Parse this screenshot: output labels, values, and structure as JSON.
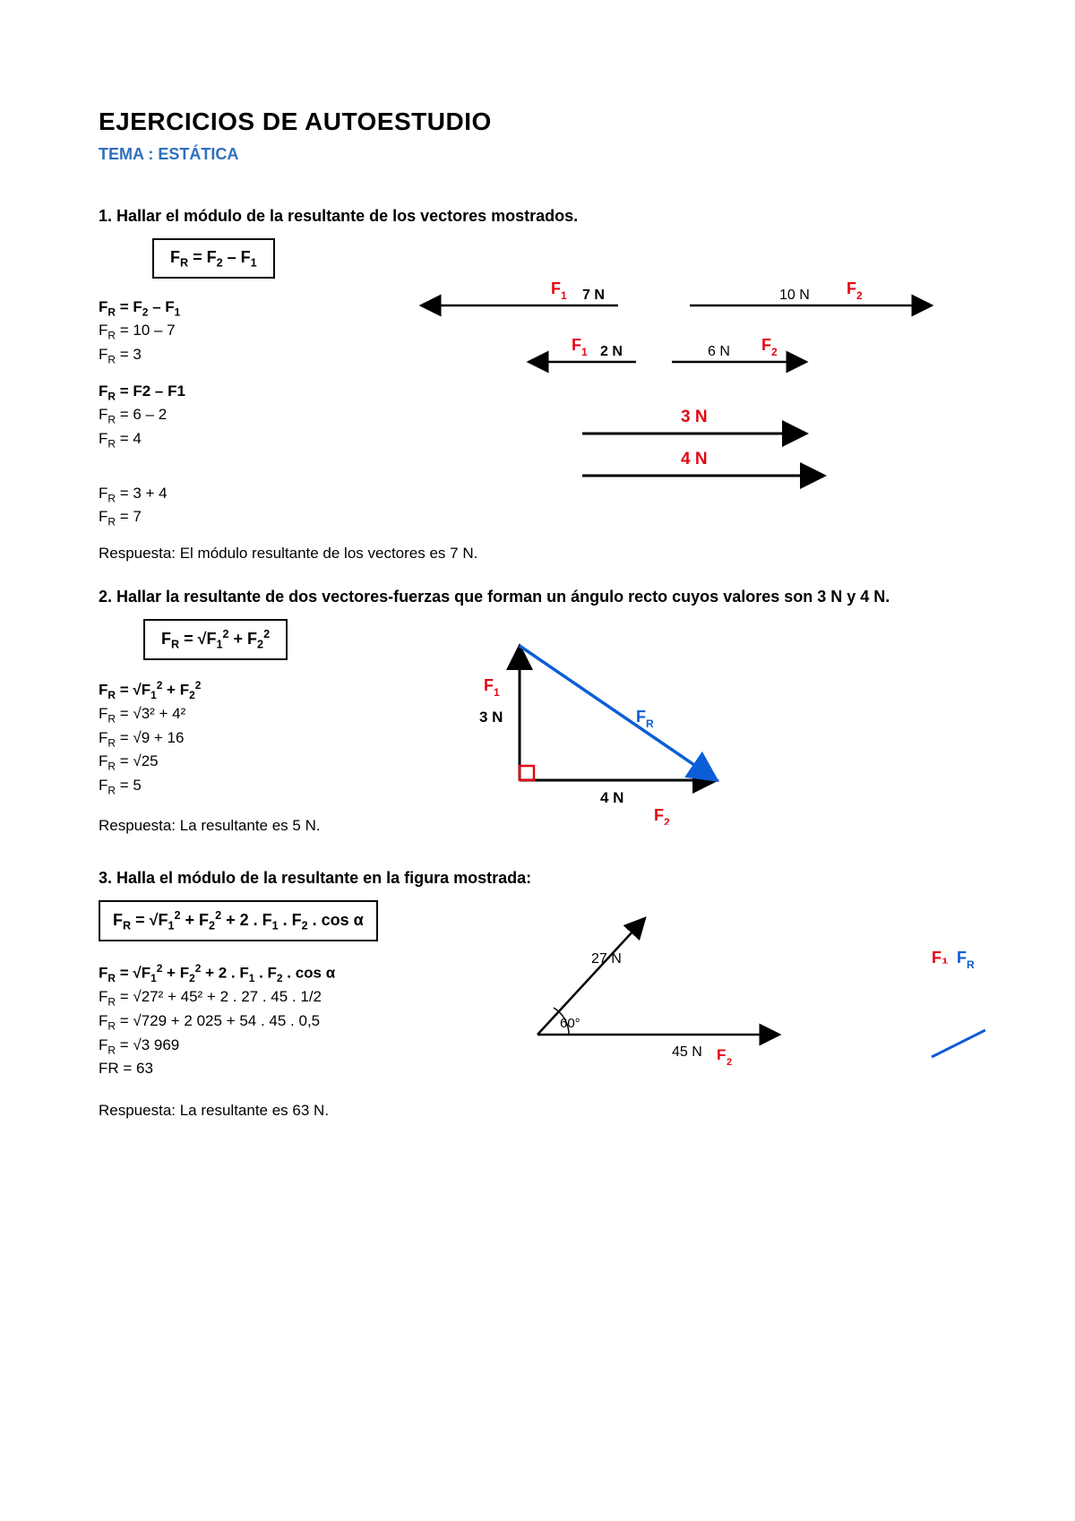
{
  "title": "EJERCICIOS DE AUTOESTUDIO",
  "subtitle": "TEMA : ESTÁTICA",
  "colors": {
    "heading_blue": "#2f6fbf",
    "red": "#e30613",
    "blue_line": "#0b5ed7",
    "black": "#000000"
  },
  "problem1": {
    "title": "1. Hallar el módulo de la resultante de los vectores mostrados.",
    "formula_box": "F<sub>R</sub> = F<sub>2</sub> – F<sub>1</sub>",
    "calc1_head": "F<sub>R</sub> = F<sub>2</sub> – F<sub>1</sub>",
    "calc1_line2": "F<sub>R</sub> = 10 – 7",
    "calc1_line3": "F<sub>R</sub> = 3",
    "calc2_head": "F<sub>R</sub> = F2 – F1",
    "calc2_line2": "F<sub>R</sub> = 6 – 2",
    "calc2_line3": "F<sub>R</sub> = 4",
    "calc3_line1": "F<sub>R</sub> = 3 + 4",
    "calc3_line2": "F<sub>R</sub> = 7",
    "respuesta": "Respuesta: El módulo resultante de los vectores es 7 N.",
    "diagram": {
      "row1": {
        "label_left": "F₁",
        "val_left": "7 N",
        "label_right": "F₂",
        "val_right": "10 N"
      },
      "row2": {
        "label_left": "F₁",
        "val_left": "2 N",
        "label_right": "F₂",
        "val_right": "6 N"
      },
      "row3": {
        "top": "3 N",
        "bottom": "4 N",
        "color": "#e30613"
      }
    }
  },
  "problem2": {
    "title": "2. Hallar la resultante de dos vectores-fuerzas que forman un ángulo recto cuyos valores son 3 N y 4 N.",
    "formula_box": "F<sub>R</sub> = √F<sub>1</sub><sup>2</sup> + F<sub>2</sub><sup>2</sup>",
    "calc_head": "F<sub>R</sub> = √F<sub>1</sub><sup>2</sup> + F<sub>2</sub><sup>2</sup>",
    "calc_l2": "F<sub>R</sub> = √3² + 4²",
    "calc_l3": "F<sub>R</sub> = √9 + 16",
    "calc_l4": "F<sub>R</sub> = √25",
    "calc_l5": "F<sub>R</sub> = 5",
    "respuesta": "Respuesta: La resultante es 5 N.",
    "diagram": {
      "F1_label": "F₁",
      "F1_val": "3 N",
      "F2_label": "F₂",
      "F2_val": "4 N",
      "FR_label": "F",
      "FR_sub": "R"
    }
  },
  "problem3": {
    "title": "3. Halla el módulo de la resultante en la figura mostrada:",
    "formula_box": "F<sub>R</sub> = √F<sub>1</sub><sup>2</sup> + F<sub>2</sub><sup>2</sup> + 2 . F<sub>1</sub> . F<sub>2</sub> . cos α",
    "calc_head": "F<sub>R</sub> = √F<sub>1</sub><sup>2</sup> + F<sub>2</sub><sup>2</sup> + 2 . F<sub>1</sub> . F<sub>2</sub> . cos α",
    "calc_l2": "F<sub>R</sub> = √27² + 45² + 2 . 27 . 45 . 1/2",
    "calc_l3": "F<sub>R</sub> = √729 + 2 025 + 54 . 45 . 0,5",
    "calc_l4": "F<sub>R</sub> = √3 969",
    "calc_l5": "FR = 63",
    "respuesta": "Respuesta: La resultante es 63 N.",
    "diagram": {
      "v1": "27 N",
      "v2": "45 N",
      "angle": "60°",
      "F2_label": "F₂",
      "side_F1": "F₁",
      "side_FR": "F",
      "side_FR_sub": "R"
    }
  }
}
